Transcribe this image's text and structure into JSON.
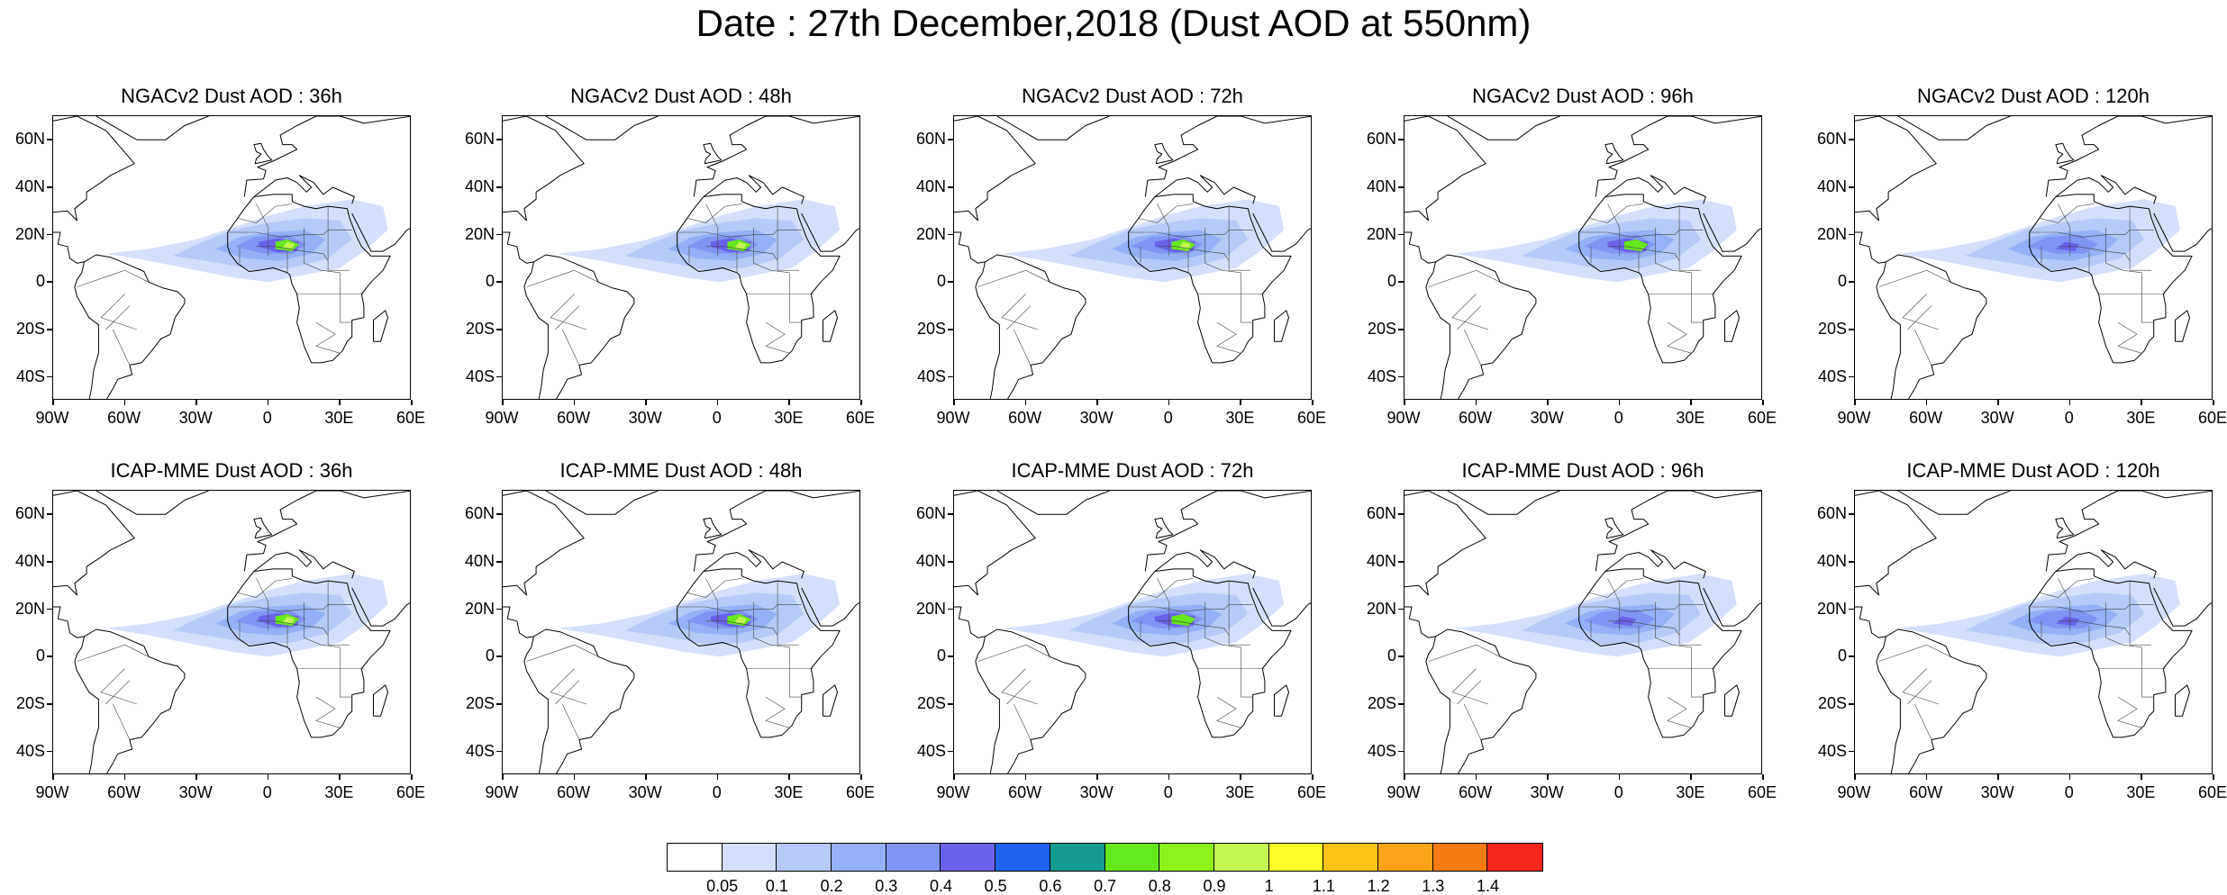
{
  "title": "Date : 27th December,2018 (Dust AOD at 550nm)",
  "rows": [
    {
      "model": "NGACv2",
      "panels": [
        {
          "title": "NGACv2 Dust AOD : 36h",
          "hotspot": "strong"
        },
        {
          "title": "NGACv2 Dust AOD : 48h",
          "hotspot": "strong"
        },
        {
          "title": "NGACv2 Dust AOD : 72h",
          "hotspot": "strong"
        },
        {
          "title": "NGACv2 Dust AOD : 96h",
          "hotspot": "medium"
        },
        {
          "title": "NGACv2 Dust AOD : 120h",
          "hotspot": "weak"
        }
      ]
    },
    {
      "model": "ICAP-MME",
      "panels": [
        {
          "title": "ICAP-MME Dust AOD : 36h",
          "hotspot": "strong"
        },
        {
          "title": "ICAP-MME Dust AOD : 48h",
          "hotspot": "strong"
        },
        {
          "title": "ICAP-MME Dust AOD : 72h",
          "hotspot": "medium"
        },
        {
          "title": "ICAP-MME Dust AOD : 96h",
          "hotspot": "weak"
        },
        {
          "title": "ICAP-MME Dust AOD : 120h",
          "hotspot": "weak"
        }
      ]
    }
  ],
  "map": {
    "lon_range": [
      -90,
      60
    ],
    "lat_range": [
      -50,
      70
    ],
    "lat_labels": [
      "60N",
      "40N",
      "20N",
      "0",
      "20S",
      "40S"
    ],
    "lat_values": [
      60,
      40,
      20,
      0,
      -20,
      -40
    ],
    "lon_labels": [
      "90W",
      "60W",
      "30W",
      "0",
      "30E",
      "60E"
    ],
    "lon_values": [
      -90,
      -60,
      -30,
      0,
      30,
      60
    ]
  },
  "colorbar": {
    "colors": [
      "#ffffff",
      "#d4e0fb",
      "#b7c9f8",
      "#95b0f6",
      "#8294f3",
      "#6a62ea",
      "#1f64ee",
      "#169a92",
      "#66e81e",
      "#8ef31c",
      "#c3f553",
      "#ffff2c",
      "#fdc21a",
      "#fca219",
      "#fa7a14",
      "#f7271d"
    ],
    "labels": [
      "0.05",
      "0.1",
      "0.2",
      "0.3",
      "0.4",
      "0.5",
      "0.6",
      "0.7",
      "0.8",
      "0.9",
      "1",
      "1.1",
      "1.2",
      "1.3",
      "1.4"
    ]
  }
}
